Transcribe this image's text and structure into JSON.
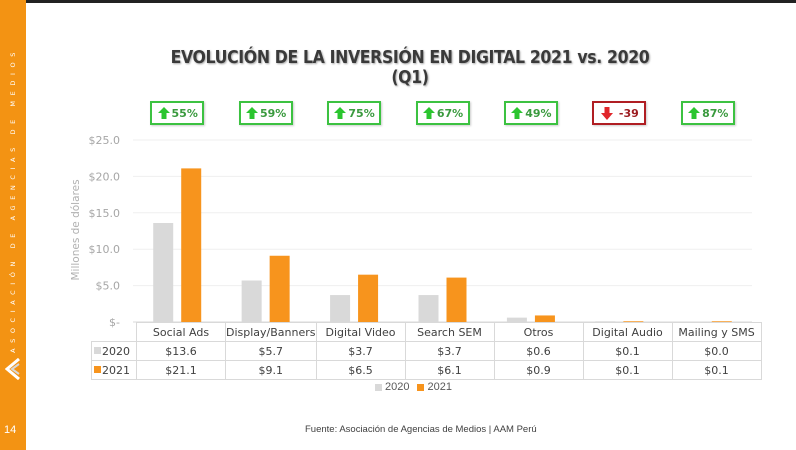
{
  "sidebar": {
    "org_text": "ASOCIACIÓN DE AGENCIAS DE MEDIOS",
    "logo": "aam-logo-icon",
    "page_number": "14"
  },
  "header": {
    "title": "EVOLUCIÓN DE LA INVERSIÓN EN DIGITAL 2021 vs. 2020 (Q1)"
  },
  "badges": [
    {
      "direction": "up",
      "label": "55%",
      "icon": "arrow-up-icon",
      "color": "#3cc241"
    },
    {
      "direction": "up",
      "label": "59%",
      "icon": "arrow-up-icon",
      "color": "#3cc241"
    },
    {
      "direction": "up",
      "label": "75%",
      "icon": "arrow-up-icon",
      "color": "#3cc241"
    },
    {
      "direction": "up",
      "label": "67%",
      "icon": "arrow-up-icon",
      "color": "#3cc241"
    },
    {
      "direction": "up",
      "label": "49%",
      "icon": "arrow-up-icon",
      "color": "#3cc241"
    },
    {
      "direction": "down",
      "label": "-39",
      "icon": "arrow-down-icon",
      "color": "#b01e23"
    },
    {
      "direction": "up",
      "label": "87%",
      "icon": "arrow-up-icon",
      "color": "#3cc241"
    }
  ],
  "chart_data": {
    "type": "bar",
    "title": "EVOLUCIÓN DE LA INVERSIÓN EN DIGITAL 2021 vs. 2020 (Q1)",
    "xlabel": "",
    "ylabel": "Millones de dólares",
    "ylim": [
      0,
      25
    ],
    "yticks": [
      0,
      5,
      10,
      15,
      20,
      25
    ],
    "ytick_labels": [
      "$-",
      "$5.0",
      "$10.0",
      "$15.0",
      "$20.0",
      "$25.0"
    ],
    "grid": true,
    "legend_position": "bottom",
    "categories": [
      "Social Ads",
      "Display/Banners",
      "Digital Video",
      "Search SEM",
      "Otros",
      "Digital Audio",
      "Mailing y SMS"
    ],
    "series": [
      {
        "name": "2020",
        "color": "#d9d9d9",
        "values": [
          13.6,
          5.7,
          3.7,
          3.7,
          0.6,
          0.1,
          0.0
        ],
        "labels": [
          "$13.6",
          "$5.7",
          "$3.7",
          "$3.7",
          "$0.6",
          "$0.1",
          "$0.0"
        ]
      },
      {
        "name": "2021",
        "color": "#f7941d",
        "values": [
          21.1,
          9.1,
          6.5,
          6.1,
          0.9,
          0.1,
          0.1
        ],
        "labels": [
          "$21.1",
          "$9.1",
          "$6.5",
          "$6.1",
          "$0.9",
          "$0.1",
          "$0.1"
        ]
      }
    ]
  },
  "legend": {
    "items": [
      {
        "label": "2020",
        "color": "#d9d9d9"
      },
      {
        "label": "2021",
        "color": "#f7941d"
      }
    ]
  },
  "footer": {
    "source": "Fuente: Asociación de Agencias de Medios | AAM Perú"
  },
  "colors": {
    "accent": "#f39313",
    "title": "#3a3a3a"
  }
}
